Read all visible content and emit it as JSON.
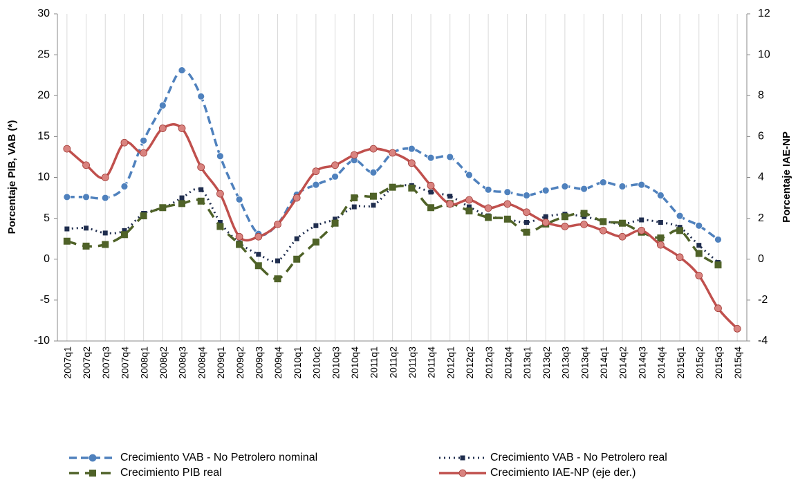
{
  "chart_data": {
    "type": "line",
    "y_label": "Porcentaje PIB, VAB (*)",
    "y2_label": "Porcentaje IAE-NP",
    "categories": [
      "2007q1",
      "2007q2",
      "2007q3",
      "2007q4",
      "2008q1",
      "2008q2",
      "2008q3",
      "2008q4",
      "2009q1",
      "2009q2",
      "2009q3",
      "2009q4",
      "2010q1",
      "2010q2",
      "2010q3",
      "2010q4",
      "2011q1",
      "2011q2",
      "2011q3",
      "2011q4",
      "2012q1",
      "2012q2",
      "2012q3",
      "2012q4",
      "2013q1",
      "2013q2",
      "2013q3",
      "2013q4",
      "2014q1",
      "2014q2",
      "2014q3",
      "2014q4",
      "2015q1",
      "2015q2",
      "2015q3",
      "2015q4"
    ],
    "ylim": [
      -10,
      30
    ],
    "yticks": [
      -10,
      -5,
      0,
      5,
      10,
      15,
      20,
      25,
      30
    ],
    "y2lim": [
      -4,
      12
    ],
    "y2ticks": [
      -4,
      -2,
      0,
      2,
      4,
      6,
      8,
      10,
      12
    ],
    "grid": true,
    "series": [
      {
        "name": "Crecimiento VAB - No Petrolero nominal",
        "color": "#4f81bd",
        "style": "dashed",
        "marker": "circle",
        "values": [
          7.6,
          7.6,
          7.5,
          8.9,
          14.5,
          18.8,
          23.1,
          19.9,
          12.6,
          7.3,
          3.1,
          4.3,
          7.9,
          9.1,
          10.1,
          12.1,
          10.6,
          13.0,
          13.5,
          12.4,
          12.5,
          10.3,
          8.5,
          8.2,
          7.8,
          8.4,
          8.9,
          8.6,
          9.4,
          8.9,
          9.1,
          7.8,
          5.3,
          4.1,
          2.4,
          null
        ]
      },
      {
        "name": "Crecimiento VAB - No Petrolero real",
        "color": "#1f2d4e",
        "style": "dotted",
        "marker": "square",
        "values": [
          3.7,
          3.8,
          3.2,
          3.5,
          5.6,
          6.2,
          7.5,
          8.5,
          4.5,
          2.0,
          0.6,
          -0.2,
          2.5,
          4.1,
          4.9,
          6.4,
          6.6,
          8.7,
          9.0,
          8.2,
          7.7,
          6.4,
          5.3,
          4.9,
          4.5,
          5.2,
          5.5,
          5.2,
          4.7,
          4.3,
          4.8,
          4.5,
          3.9,
          1.7,
          -0.4,
          null
        ]
      },
      {
        "name": "Crecimiento PIB real",
        "color": "#4f6228",
        "style": "longdash",
        "marker": "square",
        "values": [
          2.2,
          1.6,
          1.8,
          3.0,
          5.3,
          6.3,
          6.8,
          7.1,
          4.0,
          1.8,
          -0.8,
          -2.4,
          0.0,
          2.1,
          4.4,
          7.5,
          7.7,
          8.8,
          8.7,
          6.3,
          6.8,
          5.9,
          5.1,
          4.9,
          3.3,
          4.3,
          5.2,
          5.6,
          4.6,
          4.4,
          3.3,
          2.6,
          3.5,
          0.7,
          -0.7,
          null
        ]
      },
      {
        "name": "Crecimiento IAE-NP (eje der.)",
        "color": "#c0504d",
        "style": "solid",
        "marker": "circle",
        "axis": "y2",
        "values": [
          5.4,
          4.6,
          4.0,
          5.7,
          5.2,
          6.4,
          6.4,
          4.5,
          3.2,
          1.1,
          1.1,
          1.7,
          3.0,
          4.3,
          4.6,
          5.1,
          5.4,
          5.2,
          4.7,
          3.6,
          2.7,
          2.9,
          2.5,
          2.7,
          2.3,
          1.8,
          1.6,
          1.7,
          1.4,
          1.1,
          1.4,
          0.7,
          0.1,
          -0.8,
          -2.4,
          -3.4
        ]
      }
    ]
  }
}
